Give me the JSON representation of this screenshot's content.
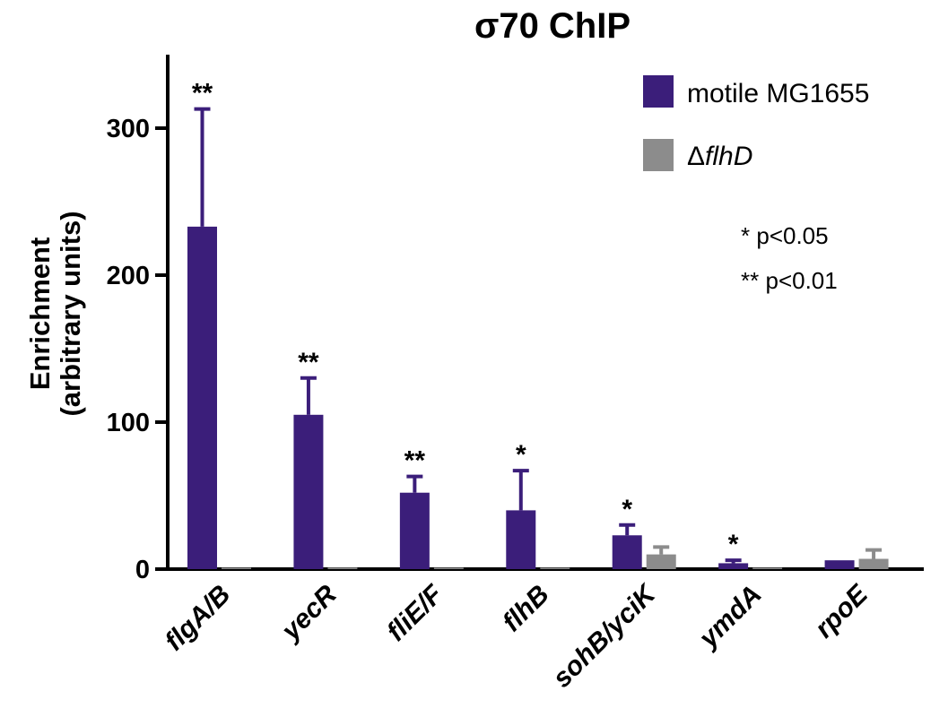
{
  "chart_data": {
    "type": "bar",
    "title": "σ70 ChIP",
    "ylabel_lines": [
      "Enrichment",
      "(arbitrary units)"
    ],
    "xlabel": "",
    "ylim": [
      0,
      350
    ],
    "yticks": [
      0,
      100,
      200,
      300
    ],
    "categories": [
      "flgA/B",
      "yecR",
      "fliE/F",
      "flhB",
      "sohB/yciK",
      "ymdA",
      "rpoE"
    ],
    "series": [
      {
        "name": "motile MG1655",
        "color": "#3b1e7a",
        "values": [
          233,
          105,
          52,
          40,
          23,
          4,
          6
        ],
        "errors": [
          80,
          25,
          11,
          27,
          7,
          2,
          0
        ]
      },
      {
        "name": "ΔflhD",
        "color": "#8c8c8c",
        "values": [
          0.5,
          1,
          0.5,
          0,
          10,
          0.5,
          7
        ],
        "errors": [
          0,
          0,
          0,
          0,
          5,
          0,
          6
        ]
      }
    ],
    "significance": [
      "**",
      "**",
      "**",
      "*",
      "*",
      "*",
      ""
    ],
    "legend": {
      "placement": "top-right",
      "items": [
        {
          "prefix": "",
          "italic": "",
          "text": "motile MG1655"
        },
        {
          "prefix": "Δ",
          "italic": "flhD",
          "text": ""
        }
      ]
    },
    "notes": [
      {
        "stars": "*",
        "text": "p<0.05"
      },
      {
        "stars": "**",
        "text": "p<0.01"
      }
    ]
  }
}
